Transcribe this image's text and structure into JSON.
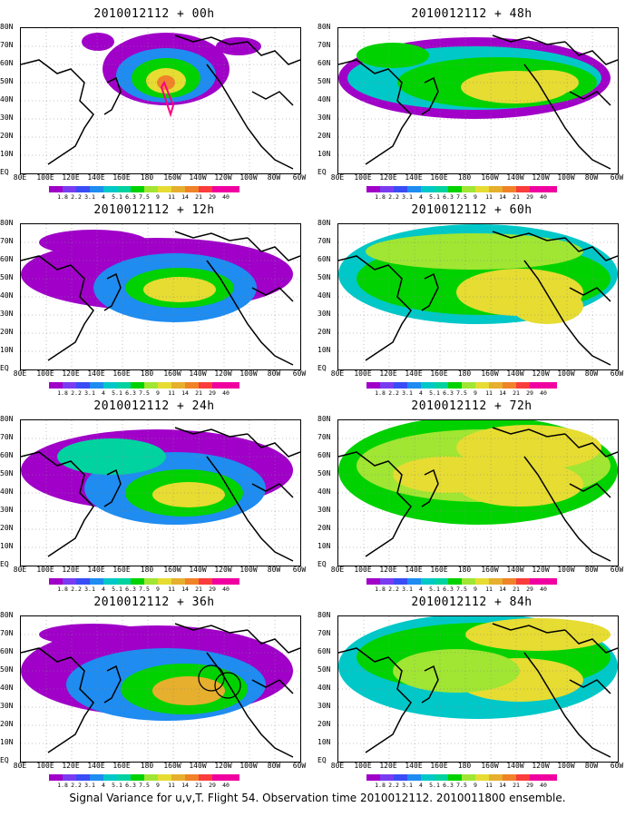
{
  "panels": [
    {
      "title": "2010012112 + 00h"
    },
    {
      "title": "2010012112 + 48h"
    },
    {
      "title": "2010012112 + 12h"
    },
    {
      "title": "2010012112 + 60h"
    },
    {
      "title": "2010012112 + 24h"
    },
    {
      "title": "2010012112 + 72h"
    },
    {
      "title": "2010012112 + 36h"
    },
    {
      "title": "2010012112 + 84h"
    }
  ],
  "axes": {
    "lat_labels": [
      "80N",
      "70N",
      "60N",
      "50N",
      "40N",
      "30N",
      "20N",
      "10N",
      "EQ"
    ],
    "lon_labels": [
      "80E",
      "100E",
      "120E",
      "140E",
      "160E",
      "180",
      "160W",
      "140W",
      "120W",
      "100W",
      "80W",
      "60W"
    ]
  },
  "colorbar": {
    "labels": [
      "1.8",
      "2.2",
      "3.1",
      "4",
      "5.1",
      "6.3",
      "7.5",
      "9",
      "11",
      "14",
      "21",
      "29",
      "40"
    ],
    "colors": [
      "#a000c8",
      "#7a3cf0",
      "#3a4cf5",
      "#1e8cf0",
      "#00c8c8",
      "#00d2a0",
      "#00d200",
      "#a0e632",
      "#e6dc32",
      "#e6af2d",
      "#f08228",
      "#fa3c3c",
      "#f000a0"
    ]
  },
  "footer": "Signal Variance for u,v,T. Flight 54. Observation time 2010012112. 2010011800 ensemble."
}
